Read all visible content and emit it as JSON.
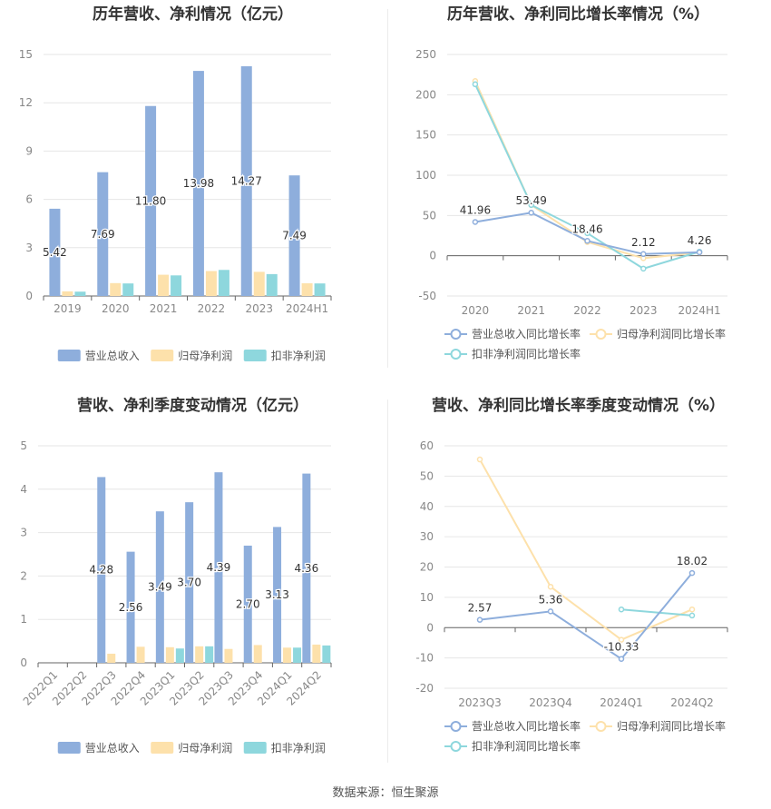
{
  "source_text": "数据来源：恒生聚源",
  "colors": {
    "revenue": "#8eaedc",
    "net_profit": "#fde1ab",
    "deducted_profit": "#8ed7dd",
    "revenue_line": "#8eaedc",
    "net_profit_line": "#fde1ab",
    "deducted_profit_line": "#8ed7dd"
  },
  "chart_data": [
    {
      "id": "annual-bar",
      "type": "bar",
      "title": "历年营收、净利情况（亿元）",
      "categories": [
        "2019",
        "2020",
        "2021",
        "2022",
        "2023",
        "2024H1"
      ],
      "ylim": [
        0,
        15
      ],
      "yticks": [
        0,
        3,
        6,
        9,
        12,
        15
      ],
      "grid": true,
      "legend_position": "bottom",
      "series": [
        {
          "name": "营业总收入",
          "values": [
            5.42,
            7.69,
            11.8,
            13.98,
            14.27,
            7.49
          ],
          "labels": [
            "5.42",
            "7.69",
            "11.80",
            "13.98",
            "14.27",
            "7.49"
          ]
        },
        {
          "name": "归母净利润",
          "values": [
            0.29,
            0.8,
            1.32,
            1.55,
            1.5,
            0.79
          ]
        },
        {
          "name": "扣非净利润",
          "values": [
            0.27,
            0.78,
            1.28,
            1.62,
            1.36,
            0.78
          ]
        }
      ]
    },
    {
      "id": "annual-line",
      "type": "line",
      "title": "历年营收、净利同比增长率情况（%）",
      "categories": [
        "2020",
        "2021",
        "2022",
        "2023",
        "2024H1"
      ],
      "ylim": [
        -50,
        250
      ],
      "yticks": [
        -50,
        0,
        50,
        100,
        150,
        200,
        250
      ],
      "grid": true,
      "legend_position": "bottom",
      "series": [
        {
          "name": "营业总收入同比增长率",
          "values": [
            41.96,
            53.49,
            18.46,
            2.12,
            4.26
          ],
          "labels": [
            "41.96",
            "53.49",
            "18.46",
            "2.12",
            "4.26"
          ]
        },
        {
          "name": "归母净利润同比增长率",
          "values": [
            217.0,
            63.0,
            17.0,
            -3.0,
            4.0
          ]
        },
        {
          "name": "扣非净利润同比增长率",
          "values": [
            213.0,
            63.0,
            28.0,
            -16.0,
            5.0
          ]
        }
      ]
    },
    {
      "id": "quarterly-bar",
      "type": "bar",
      "title": "营收、净利季度变动情况（亿元）",
      "categories": [
        "2022Q1",
        "2022Q2",
        "2022Q3",
        "2022Q4",
        "2023Q1",
        "2023Q2",
        "2023Q3",
        "2023Q4",
        "2024Q1",
        "2024Q2"
      ],
      "ylim": [
        0,
        5
      ],
      "yticks": [
        0,
        1,
        2,
        3,
        4,
        5
      ],
      "grid": true,
      "legend_position": "bottom",
      "series": [
        {
          "name": "营业总收入",
          "values": [
            null,
            null,
            4.28,
            2.56,
            3.49,
            3.7,
            4.39,
            2.7,
            3.13,
            4.36
          ],
          "labels": [
            "",
            "",
            "4.28",
            "2.56",
            "3.49",
            "3.70",
            "4.39",
            "2.70",
            "3.13",
            "4.36"
          ]
        },
        {
          "name": "归母净利润",
          "values": [
            null,
            null,
            0.21,
            0.37,
            0.36,
            0.38,
            0.32,
            0.41,
            0.35,
            0.42
          ]
        },
        {
          "name": "扣非净利润",
          "values": [
            null,
            null,
            null,
            null,
            0.33,
            0.38,
            null,
            null,
            0.35,
            0.4
          ]
        }
      ]
    },
    {
      "id": "quarterly-line",
      "type": "line",
      "title": "营收、净利同比增长率季度变动情况（%）",
      "categories": [
        "2023Q3",
        "2023Q4",
        "2024Q1",
        "2024Q2"
      ],
      "ylim": [
        -20,
        60
      ],
      "yticks": [
        -20,
        -10,
        0,
        10,
        20,
        30,
        40,
        50,
        60
      ],
      "grid": true,
      "legend_position": "bottom",
      "series": [
        {
          "name": "营业总收入同比增长率",
          "values": [
            2.57,
            5.36,
            -10.33,
            18.02
          ],
          "labels": [
            "2.57",
            "5.36",
            "-10.33",
            "18.02"
          ]
        },
        {
          "name": "归母净利润同比增长率",
          "values": [
            55.5,
            13.5,
            -4.0,
            6.0
          ]
        },
        {
          "name": "扣非净利润同比增长率",
          "values": [
            null,
            null,
            6.0,
            4.0
          ]
        }
      ]
    }
  ]
}
